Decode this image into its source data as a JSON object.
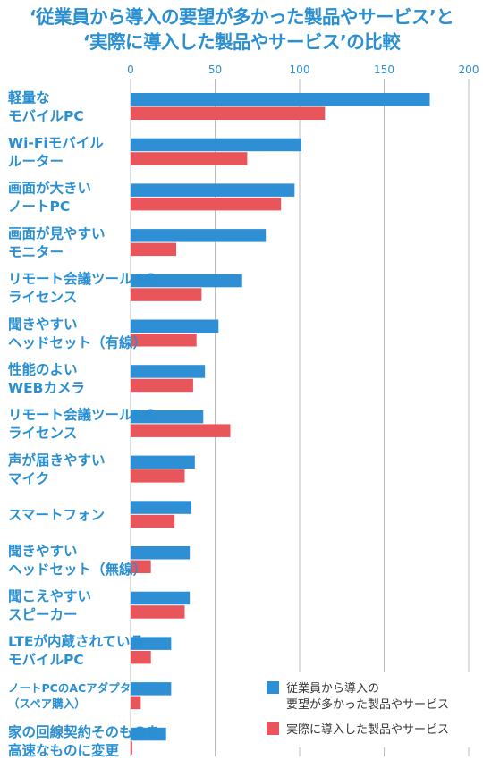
{
  "title": {
    "line1": "‘従業員から導入の要望が多かった製品やサービス’と",
    "line2": "‘実際に導入した製品やサービス’の比較"
  },
  "colors": {
    "requested": "#2e8fd4",
    "introduced": "#e8555a",
    "text": "#2a8fd0",
    "grid": "#bcbcbc"
  },
  "chart_data": {
    "type": "bar",
    "orientation": "horizontal",
    "title": "‘従業員から導入の要望が多かった製品やサービス’と‘実際に導入した製品やサービス’の比較",
    "xlim": [
      0,
      200
    ],
    "xticks": [
      0,
      50,
      100,
      150,
      200
    ],
    "grid": true,
    "legend_position": "bottom-right",
    "categories": [
      [
        "軽量な",
        "モバイルPC"
      ],
      [
        "Wi-Fiモバイル",
        "ルーター"
      ],
      [
        "画面が大きい",
        "ノートPC"
      ],
      [
        "画面が見やすい",
        "モニター"
      ],
      [
        "リモート会議ツールAの",
        "ライセンス"
      ],
      [
        "聞きやすい",
        "ヘッドセット（有線）"
      ],
      [
        "性能のよい",
        "WEBカメラ"
      ],
      [
        "リモート会議ツールBの",
        "ライセンス"
      ],
      [
        "声が届きやすい",
        "マイク"
      ],
      [
        "スマートフォン"
      ],
      [
        "聞きやすい",
        "ヘッドセット（無線）"
      ],
      [
        "聞こえやすい",
        "スピーカー"
      ],
      [
        "LTEが内蔵されている",
        "モバイルPC"
      ],
      [
        "ノートPCのACアダプター",
        "（スペア購入）"
      ],
      [
        "家の回線契約そのものを",
        "高速なものに変更"
      ]
    ],
    "series": [
      {
        "name": "従業員から導入の要望が多かった製品やサービス",
        "values": [
          177,
          101,
          97,
          80,
          66,
          52,
          44,
          43,
          38,
          36,
          35,
          35,
          24,
          24,
          21
        ]
      },
      {
        "name": "実際に導入した製品やサービス",
        "values": [
          115,
          69,
          89,
          27,
          42,
          39,
          37,
          59,
          32,
          26,
          12,
          32,
          12,
          6,
          1
        ]
      }
    ]
  }
}
